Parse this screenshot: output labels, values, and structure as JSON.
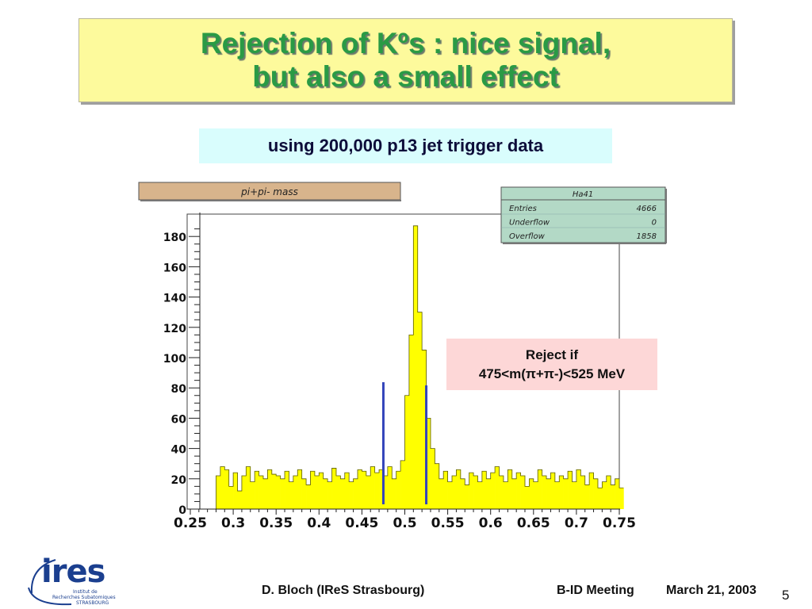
{
  "slide": {
    "title_line1": "Rejection of Kºs : nice signal,",
    "title_line2": "but also a small effect",
    "subtitle": "using 200,000 p13 jet trigger data",
    "reject_line1": "Reject if",
    "reject_line2": "475<m(π+π-)<525 MeV",
    "footer_author": "D. Bloch (IReS Strasbourg)",
    "footer_meeting": "B-ID Meeting",
    "footer_date": "March 21, 2003",
    "page_number": "5",
    "logo_text": "ires",
    "logo_sub1": "Institut de",
    "logo_sub2": "Recherches Subatomiques",
    "logo_sub3": "STRASBOURG"
  },
  "colors": {
    "title_text": "#2a9a45",
    "title_bg": "#fdfa9c",
    "subtitle_bg": "#d9fdfd",
    "reject_bg": "#fdd7d7",
    "hist_fill": "#ffff00",
    "cut_lines": "#3344bb",
    "stats_bg": "#b3d9c6",
    "histname_bg": "#d8b48c"
  },
  "chart_data": {
    "type": "bar",
    "title": "pi+pi- mass",
    "histogram_id": "Ha41",
    "stats": [
      {
        "label": "Entries",
        "value": "4666"
      },
      {
        "label": "Underflow",
        "value": "0"
      },
      {
        "label": "Overflow",
        "value": "1858"
      }
    ],
    "xlim": [
      0.25,
      0.75
    ],
    "ylim": [
      0,
      190
    ],
    "x_ticks": [
      "0.25",
      "0.3",
      "0.35",
      "0.4",
      "0.45",
      "0.5",
      "0.55",
      "0.6",
      "0.65",
      "0.7",
      "0.75"
    ],
    "y_ticks": [
      "0",
      "20",
      "40",
      "60",
      "80",
      "100",
      "120",
      "140",
      "160",
      "180"
    ],
    "bin_width": 0.005,
    "bin_start": 0.25,
    "values": [
      0,
      0,
      0,
      0,
      0,
      0,
      22,
      28,
      26,
      15,
      24,
      12,
      22,
      28,
      18,
      25,
      22,
      20,
      26,
      23,
      22,
      20,
      25,
      18,
      22,
      26,
      20,
      16,
      25,
      22,
      24,
      20,
      18,
      27,
      22,
      20,
      24,
      18,
      20,
      26,
      25,
      22,
      28,
      24,
      26,
      22,
      28,
      20,
      25,
      32,
      75,
      115,
      187,
      130,
      105,
      60,
      40,
      30,
      20,
      25,
      18,
      22,
      26,
      20,
      16,
      24,
      22,
      18,
      25,
      20,
      24,
      28,
      22,
      18,
      26,
      20,
      24,
      22,
      15,
      20,
      18,
      26,
      22,
      20,
      24,
      18,
      22,
      20,
      25,
      18,
      26,
      22,
      16,
      24,
      20,
      14,
      18,
      22,
      16,
      20,
      14
    ],
    "cut_lines": [
      0.475,
      0.525
    ]
  }
}
